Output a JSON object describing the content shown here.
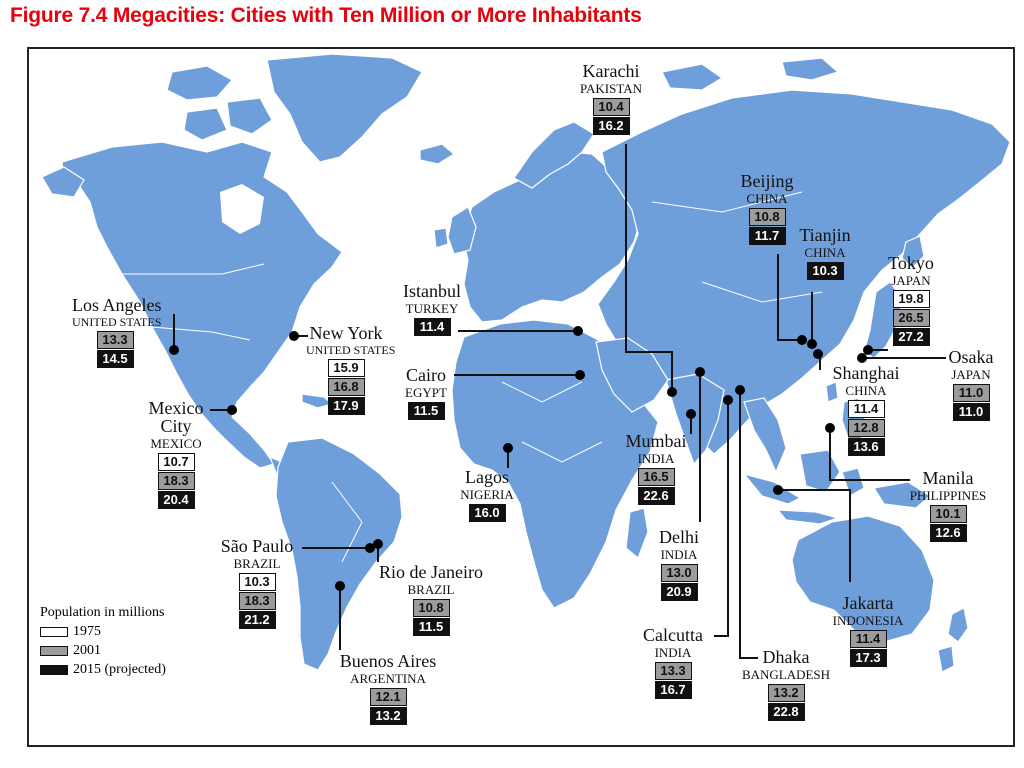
{
  "title": "Figure 7.4 Megacities: Cities with Ten Million or More Inhabitants",
  "colors": {
    "title": "#e8000b",
    "land": "#6f9fdb",
    "y1975": "#ffffff",
    "y2001": "#9c9c9c",
    "y2015": "#111111"
  },
  "legend": {
    "title": "Population in millions",
    "items": [
      {
        "label": "1975",
        "color": "#ffffff"
      },
      {
        "label": "2001",
        "color": "#9c9c9c"
      },
      {
        "label": "2015 (projected)",
        "color": "#111111"
      }
    ]
  },
  "cities": [
    {
      "id": "los-angeles",
      "name": "Los Angeles",
      "country": "UNITED STATES",
      "v2001": "13.3",
      "v2015": "14.5"
    },
    {
      "id": "new-york",
      "name": "New York",
      "country": "UNITED STATES",
      "v1975": "15.9",
      "v2001": "16.8",
      "v2015": "17.9"
    },
    {
      "id": "mexico-city",
      "name": "Mexico City",
      "country": "MEXICO",
      "v1975": "10.7",
      "v2001": "18.3",
      "v2015": "20.4"
    },
    {
      "id": "sao-paulo",
      "name": "São Paulo",
      "country": "BRAZIL",
      "v1975": "10.3",
      "v2001": "18.3",
      "v2015": "21.2"
    },
    {
      "id": "rio-de-janeiro",
      "name": "Rio de Janeiro",
      "country": "BRAZIL",
      "v2001": "10.8",
      "v2015": "11.5"
    },
    {
      "id": "buenos-aires",
      "name": "Buenos Aires",
      "country": "ARGENTINA",
      "v2001": "12.1",
      "v2015": "13.2"
    },
    {
      "id": "istanbul",
      "name": "Istanbul",
      "country": "TURKEY",
      "v2015": "11.4"
    },
    {
      "id": "cairo",
      "name": "Cairo",
      "country": "EGYPT",
      "v2015": "11.5"
    },
    {
      "id": "lagos",
      "name": "Lagos",
      "country": "NIGERIA",
      "v2015": "16.0"
    },
    {
      "id": "karachi",
      "name": "Karachi",
      "country": "PAKISTAN",
      "v2001": "10.4",
      "v2015": "16.2"
    },
    {
      "id": "mumbai",
      "name": "Mumbai",
      "country": "INDIA",
      "v2001": "16.5",
      "v2015": "22.6"
    },
    {
      "id": "delhi",
      "name": "Delhi",
      "country": "INDIA",
      "v2001": "13.0",
      "v2015": "20.9"
    },
    {
      "id": "calcutta",
      "name": "Calcutta",
      "country": "INDIA",
      "v2001": "13.3",
      "v2015": "16.7"
    },
    {
      "id": "dhaka",
      "name": "Dhaka",
      "country": "BANGLADESH",
      "v2001": "13.2",
      "v2015": "22.8"
    },
    {
      "id": "beijing",
      "name": "Beijing",
      "country": "CHINA",
      "v2001": "10.8",
      "v2015": "11.7"
    },
    {
      "id": "tianjin",
      "name": "Tianjin",
      "country": "CHINA",
      "v2015": "10.3"
    },
    {
      "id": "tokyo",
      "name": "Tokyo",
      "country": "JAPAN",
      "v1975": "19.8",
      "v2001": "26.5",
      "v2015": "27.2"
    },
    {
      "id": "osaka",
      "name": "Osaka",
      "country": "JAPAN",
      "v2001": "11.0",
      "v2015": "11.0"
    },
    {
      "id": "shanghai",
      "name": "Shanghai",
      "country": "CHINA",
      "v1975": "11.4",
      "v2001": "12.8",
      "v2015": "13.6"
    },
    {
      "id": "manila",
      "name": "Manila",
      "country": "PHILIPPINES",
      "v2001": "10.1",
      "v2015": "12.6"
    },
    {
      "id": "jakarta",
      "name": "Jakarta",
      "country": "INDONESIA",
      "v2001": "11.4",
      "v2015": "17.3"
    }
  ]
}
